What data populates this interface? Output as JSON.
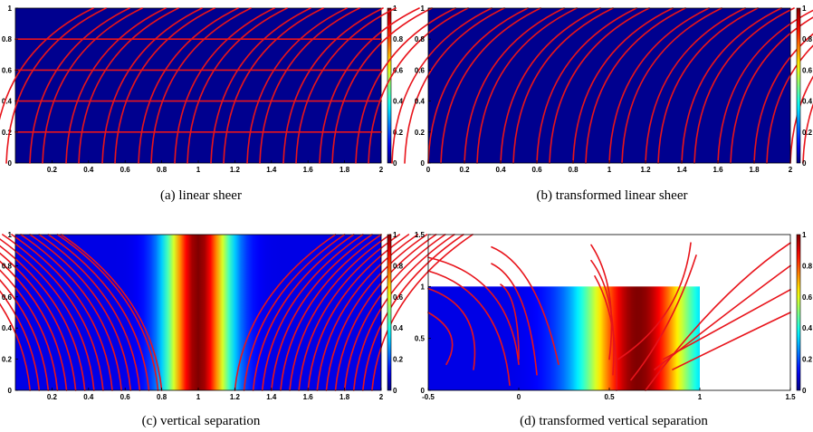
{
  "colors": {
    "colormap": "jet",
    "streamline": "#e8141b",
    "background": "#ffffff"
  },
  "chart_data": [
    {
      "type": "heatmap",
      "caption": "(a)  linear sheer",
      "xticks": [
        "0.2",
        "0.4",
        "0.6",
        "0.8",
        "1",
        "1.2",
        "1.4",
        "1.6",
        "1.8",
        "2"
      ],
      "yticks": [
        "0",
        "0.2",
        "0.4",
        "0.6",
        "0.8",
        "1"
      ],
      "xlim": [
        0,
        2
      ],
      "ylim": [
        0,
        1
      ],
      "colorbar": {
        "range": [
          0,
          1
        ],
        "ticks": [
          "0",
          "0.2",
          "0.4",
          "0.6",
          "0.8",
          "1"
        ]
      },
      "field": "uniform zero",
      "streamlines": "horizontal lines at y = 0.2, 0.4, 0.6, 0.8"
    },
    {
      "type": "heatmap",
      "caption": "(b)  transformed linear sheer",
      "xticks": [
        "0",
        "0.2",
        "0.4",
        "0.6",
        "0.8",
        "1",
        "1.2",
        "1.4",
        "1.6",
        "1.8",
        "2"
      ],
      "yticks": [
        "0",
        "0.2",
        "0.4",
        "0.6",
        "0.8",
        "1"
      ],
      "xlim": [
        0,
        2
      ],
      "ylim": [
        0,
        1
      ],
      "colorbar": {
        "range": [
          0,
          1
        ],
        "ticks": [
          "0",
          "0.2",
          "0.4",
          "0.6",
          "0.8",
          "1"
        ]
      },
      "field": "uniform zero",
      "streamlines": "curved arcs rising from the bottom, bending right"
    },
    {
      "type": "heatmap",
      "caption": "(c)  vertical separation",
      "xticks": [
        "0.2",
        "0.4",
        "0.6",
        "0.8",
        "1",
        "1.2",
        "1.4",
        "1.6",
        "1.8",
        "2"
      ],
      "yticks": [
        "0",
        "0.2",
        "0.4",
        "0.6",
        "0.8",
        "1"
      ],
      "xlim": [
        0,
        2
      ],
      "ylim": [
        0,
        1
      ],
      "colorbar": {
        "range": [
          0,
          1
        ],
        "ticks": [
          "0",
          "0.2",
          "0.4",
          "0.6",
          "0.8",
          "1"
        ]
      },
      "field": "vertical gaussian band centred near x = 1",
      "streamlines": "curves diverging away from the centre line"
    },
    {
      "type": "heatmap",
      "caption": "(d)  transformed vertical separation",
      "xticks": [
        "-0.5",
        "0",
        "0.5",
        "1",
        "1.5"
      ],
      "yticks": [
        "0",
        "0.5",
        "1",
        "1.5"
      ],
      "xlim": [
        -0.5,
        1.5
      ],
      "ylim": [
        0,
        1.5
      ],
      "colorbar": {
        "range": [
          0,
          1
        ],
        "ticks": [
          "0",
          "0.2",
          "0.4",
          "0.6",
          "0.8",
          "1"
        ]
      },
      "field": "band on the square [-0.5, 1] x [0, 1], peak near x = 0.65",
      "streamlines": "arcs around the peak band, extending beyond the field"
    }
  ]
}
